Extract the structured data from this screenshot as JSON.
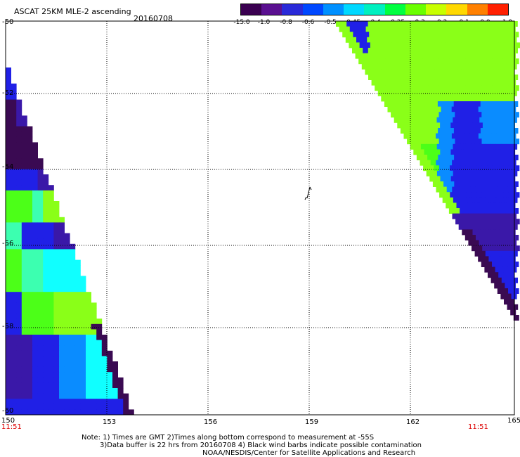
{
  "header": {
    "title": "ASCAT 25KM MLE-2 ascending",
    "date": "20160708"
  },
  "colorbar": {
    "labels": [
      "-15.0",
      "-1.0",
      "-0.8",
      "-0.6",
      "-0.5",
      "-0.45",
      "-0.4",
      "-0.35",
      "-0.3",
      "-0.2",
      "-0.1",
      "0.0",
      "1.0"
    ],
    "colors": [
      "#3a0050",
      "#5a1090",
      "#2a2ad8",
      "#0048ff",
      "#0090ff",
      "#00d8ff",
      "#00f0c0",
      "#00ff40",
      "#6aff00",
      "#c8ff00",
      "#ffd800",
      "#ff8000",
      "#ff2000"
    ]
  },
  "map": {
    "lat_labels": [
      "-50",
      "-52",
      "-54",
      "-56",
      "-58",
      "-60"
    ],
    "lon_labels": [
      "150",
      "153",
      "156",
      "159",
      "162",
      "165"
    ],
    "time_left": "11:51",
    "time_right": "11:51",
    "swath_colors": {
      "dark_purple": "#3a0a52",
      "purple": "#3a18a8",
      "blue": "#2020e6",
      "lightblue": "#0a8cff",
      "cyan": "#10ffff",
      "aqua": "#3cffb0",
      "green": "#4cff18",
      "lime": "#8aff18"
    }
  },
  "footer": {
    "line1": "Note: 1) Times are GMT 2)Times along bottom correspond to measurement at -55S",
    "line2": "3)Data buffer is 22 hrs from 20160708 4) Black wind barbs indicate possible contamination",
    "line3": "NOAA/NESDIS/Center for Satellite Applications and Research"
  }
}
